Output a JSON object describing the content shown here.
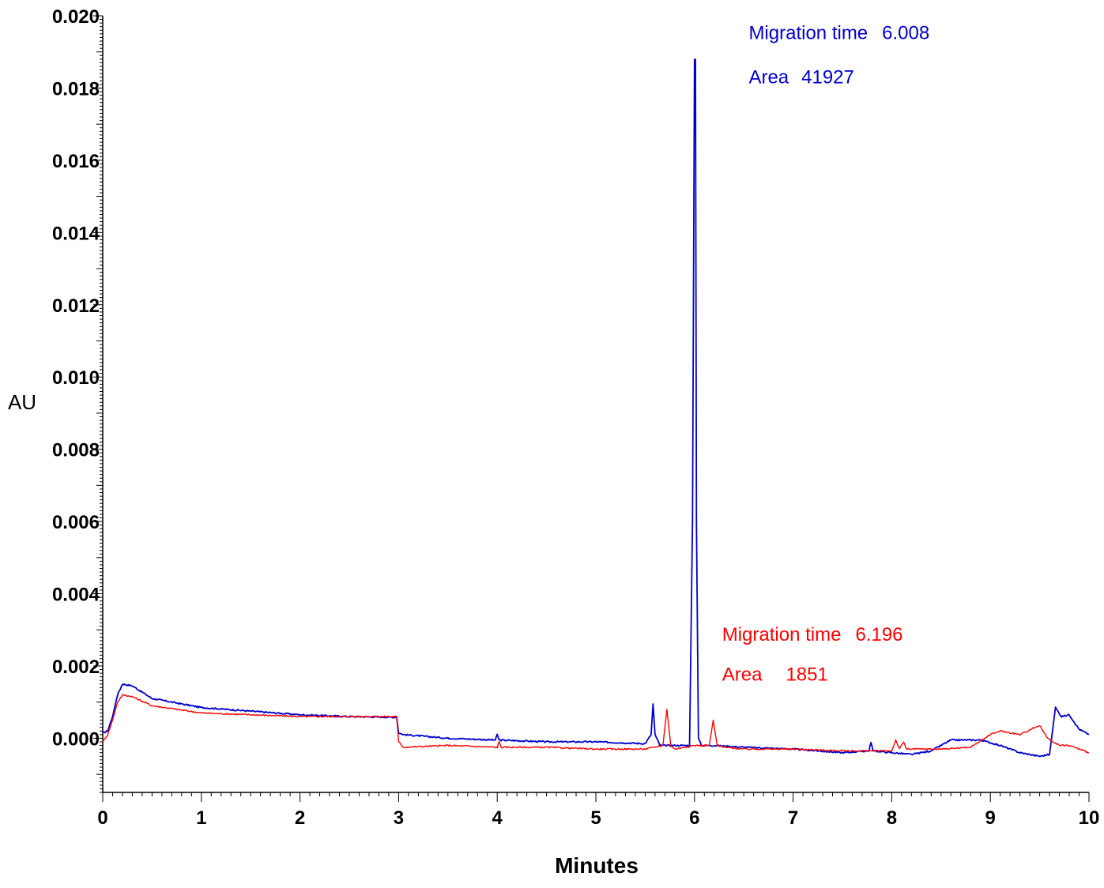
{
  "chart_data": {
    "type": "line",
    "xlabel": "Minutes",
    "ylabel": "AU",
    "xlim": [
      0,
      10
    ],
    "ylim": [
      -0.0015,
      0.02
    ],
    "x_ticks": [
      "0",
      "1",
      "2",
      "3",
      "4",
      "5",
      "6",
      "7",
      "8",
      "9",
      "10"
    ],
    "y_ticks": [
      "0.000",
      "0.002",
      "0.004",
      "0.006",
      "0.008",
      "0.010",
      "0.012",
      "0.014",
      "0.016",
      "0.018",
      "0.020"
    ],
    "grid": false,
    "series": [
      {
        "color": "#0000cc",
        "x": [
          0.0,
          0.05,
          0.1,
          0.15,
          0.2,
          0.3,
          0.5,
          1.0,
          1.5,
          2.0,
          2.5,
          2.98,
          3.0,
          3.05,
          3.5,
          3.98,
          4.0,
          4.02,
          4.5,
          5.0,
          5.5,
          5.56,
          5.58,
          5.6,
          5.65,
          5.8,
          5.95,
          5.98,
          6.0,
          6.01,
          6.02,
          6.04,
          6.07,
          6.2,
          6.5,
          7.0,
          7.5,
          7.77,
          7.79,
          7.81,
          8.0,
          8.2,
          8.4,
          8.6,
          8.9,
          9.1,
          9.3,
          9.5,
          9.6,
          9.66,
          9.72,
          9.8,
          9.9,
          10.0
        ],
        "y": [
          0.00015,
          0.0002,
          0.0006,
          0.0012,
          0.0015,
          0.00145,
          0.0011,
          0.00085,
          0.00075,
          0.00065,
          0.0006,
          0.00058,
          0.00015,
          0.0001,
          0.0,
          -5e-05,
          0.0001,
          -5e-05,
          -0.0001,
          -0.0001,
          -0.00015,
          0.0001,
          0.00095,
          0.0001,
          -0.0002,
          -0.0002,
          -0.0002,
          0.006,
          0.0188,
          0.0188,
          0.006,
          0.0,
          -0.0002,
          -0.0002,
          -0.00025,
          -0.0003,
          -0.0004,
          -0.00035,
          -0.0001,
          -0.00035,
          -0.0004,
          -0.00045,
          -0.00035,
          -5e-05,
          -5e-05,
          -0.0002,
          -0.0004,
          -0.0005,
          -0.00045,
          0.00085,
          0.0006,
          0.00065,
          0.00025,
          0.0001
        ]
      },
      {
        "color": "#ff0000",
        "x": [
          0.0,
          0.05,
          0.1,
          0.15,
          0.2,
          0.3,
          0.5,
          1.0,
          1.5,
          2.0,
          2.5,
          2.98,
          3.0,
          3.05,
          3.5,
          4.0,
          4.02,
          4.04,
          4.5,
          5.0,
          5.5,
          5.68,
          5.72,
          5.76,
          5.8,
          6.0,
          6.15,
          6.19,
          6.23,
          6.3,
          6.5,
          7.0,
          7.5,
          8.0,
          8.04,
          8.08,
          8.12,
          8.15,
          8.18,
          8.5,
          8.8,
          9.0,
          9.1,
          9.3,
          9.45,
          9.5,
          9.58,
          9.7,
          9.8,
          10.0
        ],
        "y": [
          -0.0001,
          0.0001,
          0.0005,
          0.001,
          0.0012,
          0.00115,
          0.0009,
          0.0007,
          0.00065,
          0.0006,
          0.0006,
          0.0006,
          -0.0001,
          -0.00025,
          -0.0002,
          -0.00025,
          -0.0001,
          -0.00025,
          -0.00025,
          -0.0003,
          -0.0003,
          -0.0002,
          0.0008,
          -0.0002,
          -0.0003,
          -0.0002,
          -0.0002,
          0.0005,
          -0.0002,
          -0.00025,
          -0.0003,
          -0.0003,
          -0.00035,
          -0.00035,
          -5e-05,
          -0.0003,
          -0.0001,
          -0.0003,
          -0.0003,
          -0.0003,
          -0.00025,
          0.0001,
          0.0002,
          0.0001,
          0.0003,
          0.00035,
          0.0,
          -0.0002,
          -0.0002,
          -0.0004
        ]
      }
    ],
    "annotations": [
      {
        "color": "#0000cc",
        "x": 6.55,
        "lines": [
          {
            "y": 0.01935,
            "label": "Migration time",
            "value": "6.008"
          },
          {
            "y": 0.01813,
            "label": "Area",
            "value": "41927"
          }
        ]
      },
      {
        "color": "#ff0000",
        "x": 6.28,
        "lines": [
          {
            "y": 0.0027,
            "label": "Migration time",
            "value": "6.196"
          },
          {
            "y": 0.0016,
            "label": "Area",
            "value": "1851"
          }
        ]
      }
    ]
  }
}
